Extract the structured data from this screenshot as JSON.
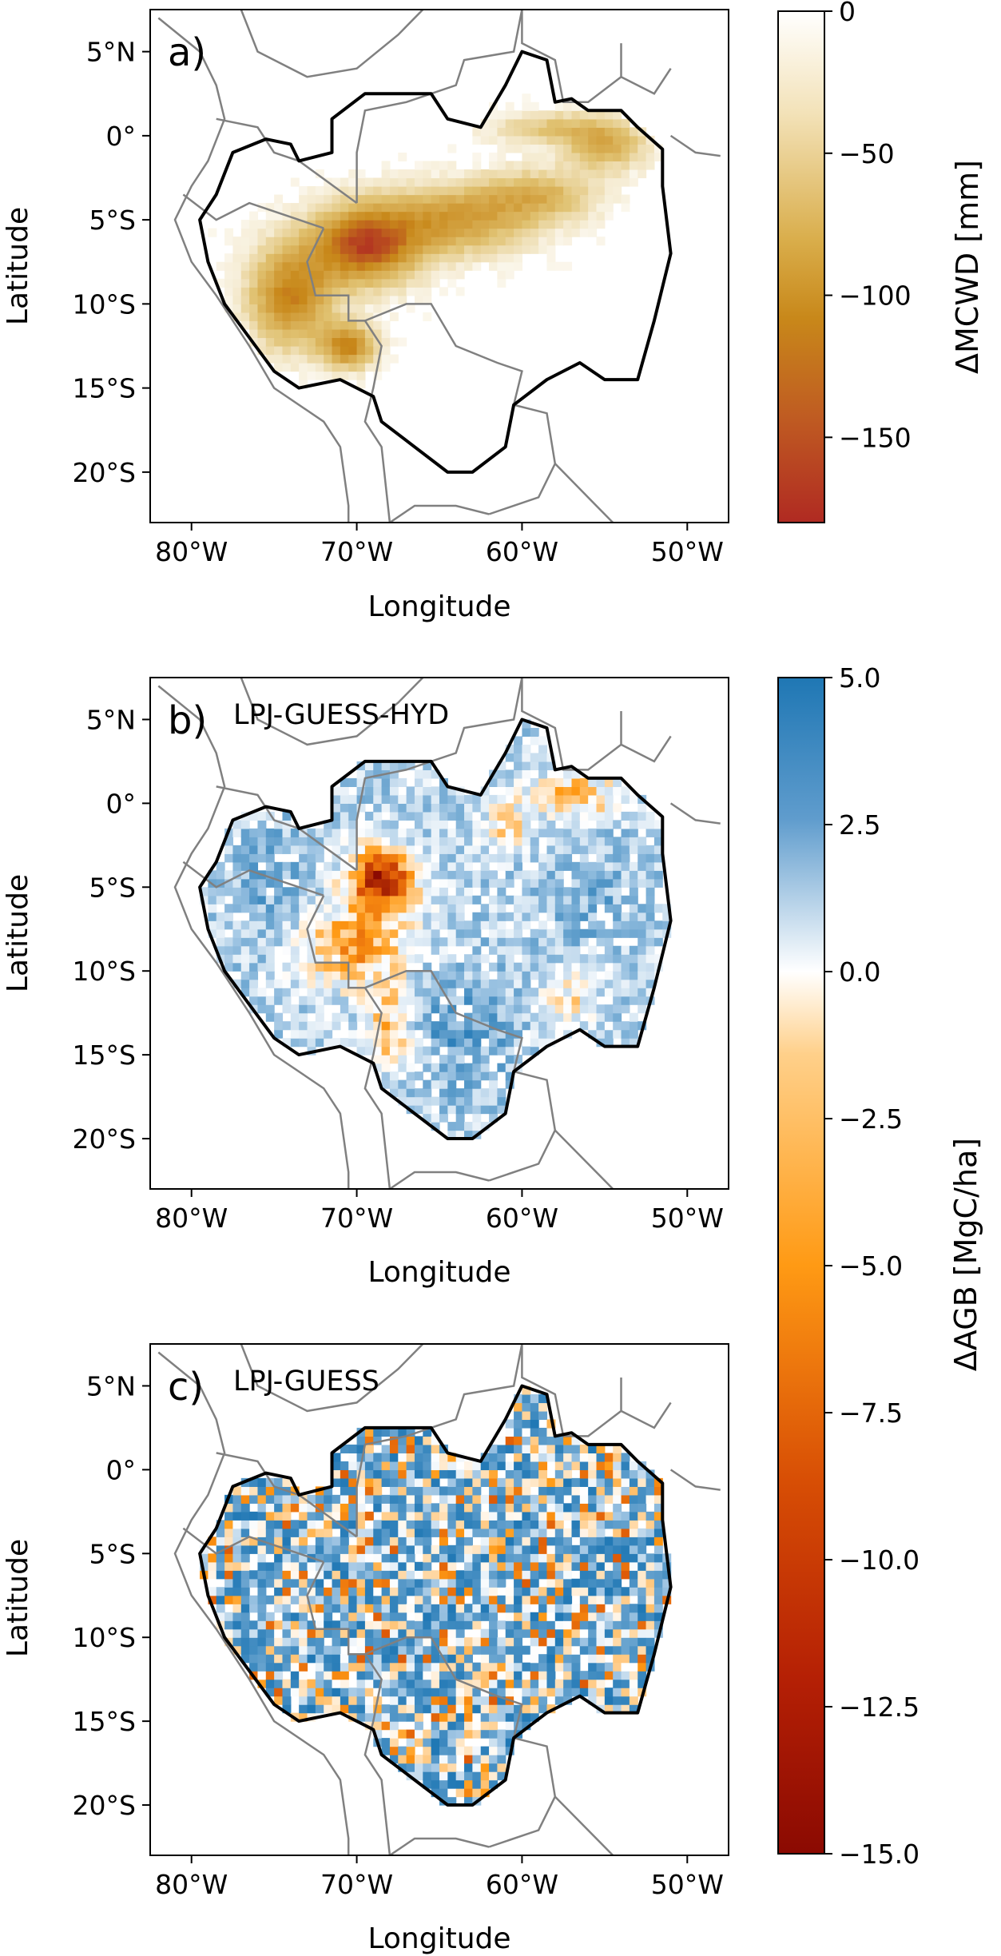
{
  "chart_data": [
    {
      "type": "heatmap",
      "panel_label": "a)",
      "title": "",
      "xlabel": "Longitude",
      "ylabel": "Latitude",
      "xlim": [
        -82.5,
        -47.5
      ],
      "ylim": [
        -23.0,
        7.5
      ],
      "xticks": [
        -80,
        -70,
        -60,
        -50
      ],
      "xtick_labels": [
        "80°W",
        "70°W",
        "60°W",
        "50°W"
      ],
      "yticks": [
        5,
        0,
        -5,
        -10,
        -15,
        -20
      ],
      "ytick_labels": [
        "5°N",
        "0°",
        "5°S",
        "10°S",
        "15°S",
        "20°S"
      ],
      "colorbar": {
        "label": "ΔMCWD [mm]",
        "range": [
          -180,
          0
        ],
        "ticks": [
          0,
          -50,
          -100,
          -150
        ],
        "tick_labels": [
          "0",
          "−50",
          "−100",
          "−150"
        ],
        "colors": [
          "#b02a22",
          "#c8881a",
          "#e0c170",
          "#ffffff"
        ]
      },
      "pattern": "mcwd",
      "summary": "Strongest drying (about −150 mm) in the western/southwestern basin near 70°W 7°S; moderate drying along a band to the northeast near 0°–3°S, 50–60°W; near zero elsewhere."
    },
    {
      "type": "heatmap",
      "panel_label": "b)",
      "model_name": "LPJ-GUESS-HYD",
      "xlabel": "Longitude",
      "ylabel": "Latitude",
      "xlim": [
        -82.5,
        -47.5
      ],
      "ylim": [
        -23.0,
        7.5
      ],
      "xticks": [
        -80,
        -70,
        -60,
        -50
      ],
      "xtick_labels": [
        "80°W",
        "70°W",
        "60°W",
        "50°W"
      ],
      "yticks": [
        5,
        0,
        -5,
        -10,
        -15,
        -20
      ],
      "ytick_labels": [
        "5°N",
        "0°",
        "5°S",
        "10°S",
        "15°S",
        "20°S"
      ],
      "pattern": "hyd",
      "summary": "Biomass loss (orange to dark red, down to about −15 MgC/ha) in the southwest and northeast; gains (blue, up to +5 MgC/ha) in the southern and western basin."
    },
    {
      "type": "heatmap",
      "panel_label": "c)",
      "model_name": "LPJ-GUESS",
      "xlabel": "Longitude",
      "ylabel": "Latitude",
      "xlim": [
        -82.5,
        -47.5
      ],
      "ylim": [
        -23.0,
        7.5
      ],
      "xticks": [
        -80,
        -70,
        -60,
        -50
      ],
      "xtick_labels": [
        "80°W",
        "70°W",
        "60°W",
        "50°W"
      ],
      "yticks": [
        5,
        0,
        -5,
        -10,
        -15,
        -20
      ],
      "ytick_labels": [
        "5°N",
        "0°",
        "5°S",
        "10°S",
        "15°S",
        "20°S"
      ],
      "pattern": "noise",
      "summary": "Spatially noisy mix of small gains and losses with no coherent drought pattern."
    }
  ],
  "shared_colorbar": {
    "label": "ΔAGB [MgC/ha]",
    "range": [
      -15.0,
      5.0
    ],
    "ticks": [
      5.0,
      2.5,
      0.0,
      -2.5,
      -5.0,
      -7.5,
      -10.0,
      -12.5,
      -15.0
    ],
    "tick_labels": [
      "5.0",
      "2.5",
      "0.0",
      "−2.5",
      "−5.0",
      "−7.5",
      "−10.0",
      "−12.5",
      "−15.0"
    ],
    "colors": [
      "#8b0a02",
      "#d84f05",
      "#ff9a14",
      "#ffffff",
      "#9cc3e2",
      "#1f77b4"
    ]
  },
  "basin_outline": [
    [
      -73.5,
      -1.5
    ],
    [
      -71.5,
      -1.0
    ],
    [
      -71.5,
      1.0
    ],
    [
      -69.5,
      2.5
    ],
    [
      -65.5,
      2.5
    ],
    [
      -64.5,
      1.0
    ],
    [
      -62.5,
      0.5
    ],
    [
      -61.0,
      3.0
    ],
    [
      -60.0,
      5.0
    ],
    [
      -58.5,
      4.5
    ],
    [
      -58.0,
      2.0
    ],
    [
      -57.0,
      2.2
    ],
    [
      -56.0,
      1.5
    ],
    [
      -54.0,
      1.5
    ],
    [
      -53.0,
      0.5
    ],
    [
      -51.5,
      -0.8
    ],
    [
      -51.5,
      -3.0
    ],
    [
      -51.0,
      -7.0
    ],
    [
      -52.0,
      -11.0
    ],
    [
      -53.0,
      -14.5
    ],
    [
      -55.0,
      -14.5
    ],
    [
      -56.5,
      -13.5
    ],
    [
      -58.5,
      -14.5
    ],
    [
      -60.5,
      -16.0
    ],
    [
      -61.0,
      -18.5
    ],
    [
      -63.0,
      -20.0
    ],
    [
      -64.5,
      -20.0
    ],
    [
      -66.5,
      -18.5
    ],
    [
      -68.5,
      -17.0
    ],
    [
      -69.0,
      -15.5
    ],
    [
      -71.0,
      -14.5
    ],
    [
      -73.5,
      -15.0
    ],
    [
      -75.0,
      -14.0
    ],
    [
      -76.5,
      -12.0
    ],
    [
      -78.0,
      -10.0
    ],
    [
      -79.0,
      -7.5
    ],
    [
      -79.5,
      -5.0
    ],
    [
      -78.5,
      -3.5
    ],
    [
      -77.5,
      -1.0
    ],
    [
      -75.5,
      -0.2
    ],
    [
      -74.0,
      -0.5
    ]
  ],
  "border_lines": [
    [
      [
        -82.0,
        7.0
      ],
      [
        -79.5,
        5.0
      ],
      [
        -78.5,
        3.0
      ],
      [
        -78.0,
        1.0
      ],
      [
        -79.0,
        -1.5
      ],
      [
        -80.0,
        -3.0
      ],
      [
        -81.0,
        -5.0
      ],
      [
        -80.0,
        -7.5
      ],
      [
        -78.5,
        -9.5
      ],
      [
        -76.5,
        -12.5
      ],
      [
        -75.0,
        -15.0
      ],
      [
        -72.0,
        -17.0
      ],
      [
        -71.0,
        -18.5
      ],
      [
        -70.5,
        -22.0
      ],
      [
        -70.5,
        -23.0
      ]
    ],
    [
      [
        -77.0,
        7.5
      ],
      [
        -76.0,
        5.0
      ],
      [
        -73.0,
        3.5
      ],
      [
        -70.0,
        4.0
      ],
      [
        -67.5,
        6.0
      ],
      [
        -66.0,
        7.5
      ]
    ],
    [
      [
        -78.5,
        1.0
      ],
      [
        -76.0,
        0.5
      ],
      [
        -75.0,
        -1.0
      ],
      [
        -73.5,
        -1.5
      ],
      [
        -70.0,
        -4.0
      ]
    ],
    [
      [
        -80.5,
        -3.5
      ],
      [
        -78.5,
        -5.0
      ],
      [
        -76.5,
        -4.0
      ],
      [
        -75.0,
        -4.5
      ],
      [
        -73.5,
        -5.0
      ],
      [
        -72.0,
        -5.5
      ]
    ],
    [
      [
        -70.0,
        -4.0
      ],
      [
        -70.0,
        -1.0
      ],
      [
        -69.5,
        1.5
      ],
      [
        -67.0,
        2.0
      ],
      [
        -64.0,
        3.0
      ],
      [
        -63.5,
        4.5
      ],
      [
        -60.5,
        5.0
      ],
      [
        -60.0,
        7.5
      ]
    ],
    [
      [
        -72.0,
        -5.5
      ],
      [
        -73.0,
        -7.5
      ],
      [
        -72.5,
        -9.5
      ],
      [
        -70.5,
        -9.5
      ],
      [
        -70.5,
        -11.0
      ],
      [
        -69.5,
        -11.0
      ],
      [
        -68.5,
        -12.5
      ],
      [
        -69.0,
        -15.0
      ],
      [
        -69.5,
        -17.0
      ],
      [
        -68.5,
        -18.5
      ],
      [
        -68.0,
        -23.0
      ]
    ],
    [
      [
        -69.5,
        -11.0
      ],
      [
        -67.0,
        -10.0
      ],
      [
        -65.5,
        -10.0
      ],
      [
        -64.0,
        -12.5
      ],
      [
        -61.5,
        -13.5
      ],
      [
        -60.0,
        -14.0
      ],
      [
        -60.5,
        -16.0
      ],
      [
        -58.5,
        -16.5
      ],
      [
        -58.0,
        -19.5
      ],
      [
        -59.0,
        -21.5
      ],
      [
        -62.0,
        -22.5
      ]
    ],
    [
      [
        -62.0,
        -22.5
      ],
      [
        -64.0,
        -22.0
      ],
      [
        -66.5,
        -22.0
      ],
      [
        -68.0,
        -23.0
      ]
    ],
    [
      [
        -58.0,
        -19.5
      ],
      [
        -55.5,
        -22.0
      ],
      [
        -54.5,
        -23.0
      ]
    ],
    [
      [
        -60.0,
        7.5
      ],
      [
        -60.0,
        5.5
      ],
      [
        -58.0,
        4.5
      ],
      [
        -57.5,
        2.0
      ],
      [
        -56.0,
        2.0
      ],
      [
        -54.0,
        3.5
      ],
      [
        -54.0,
        5.5
      ]
    ],
    [
      [
        -54.0,
        3.5
      ],
      [
        -52.0,
        2.5
      ],
      [
        -51.0,
        4.0
      ]
    ],
    [
      [
        -51.0,
        0.0
      ],
      [
        -49.5,
        -1.0
      ],
      [
        -48.0,
        -1.2
      ]
    ]
  ]
}
